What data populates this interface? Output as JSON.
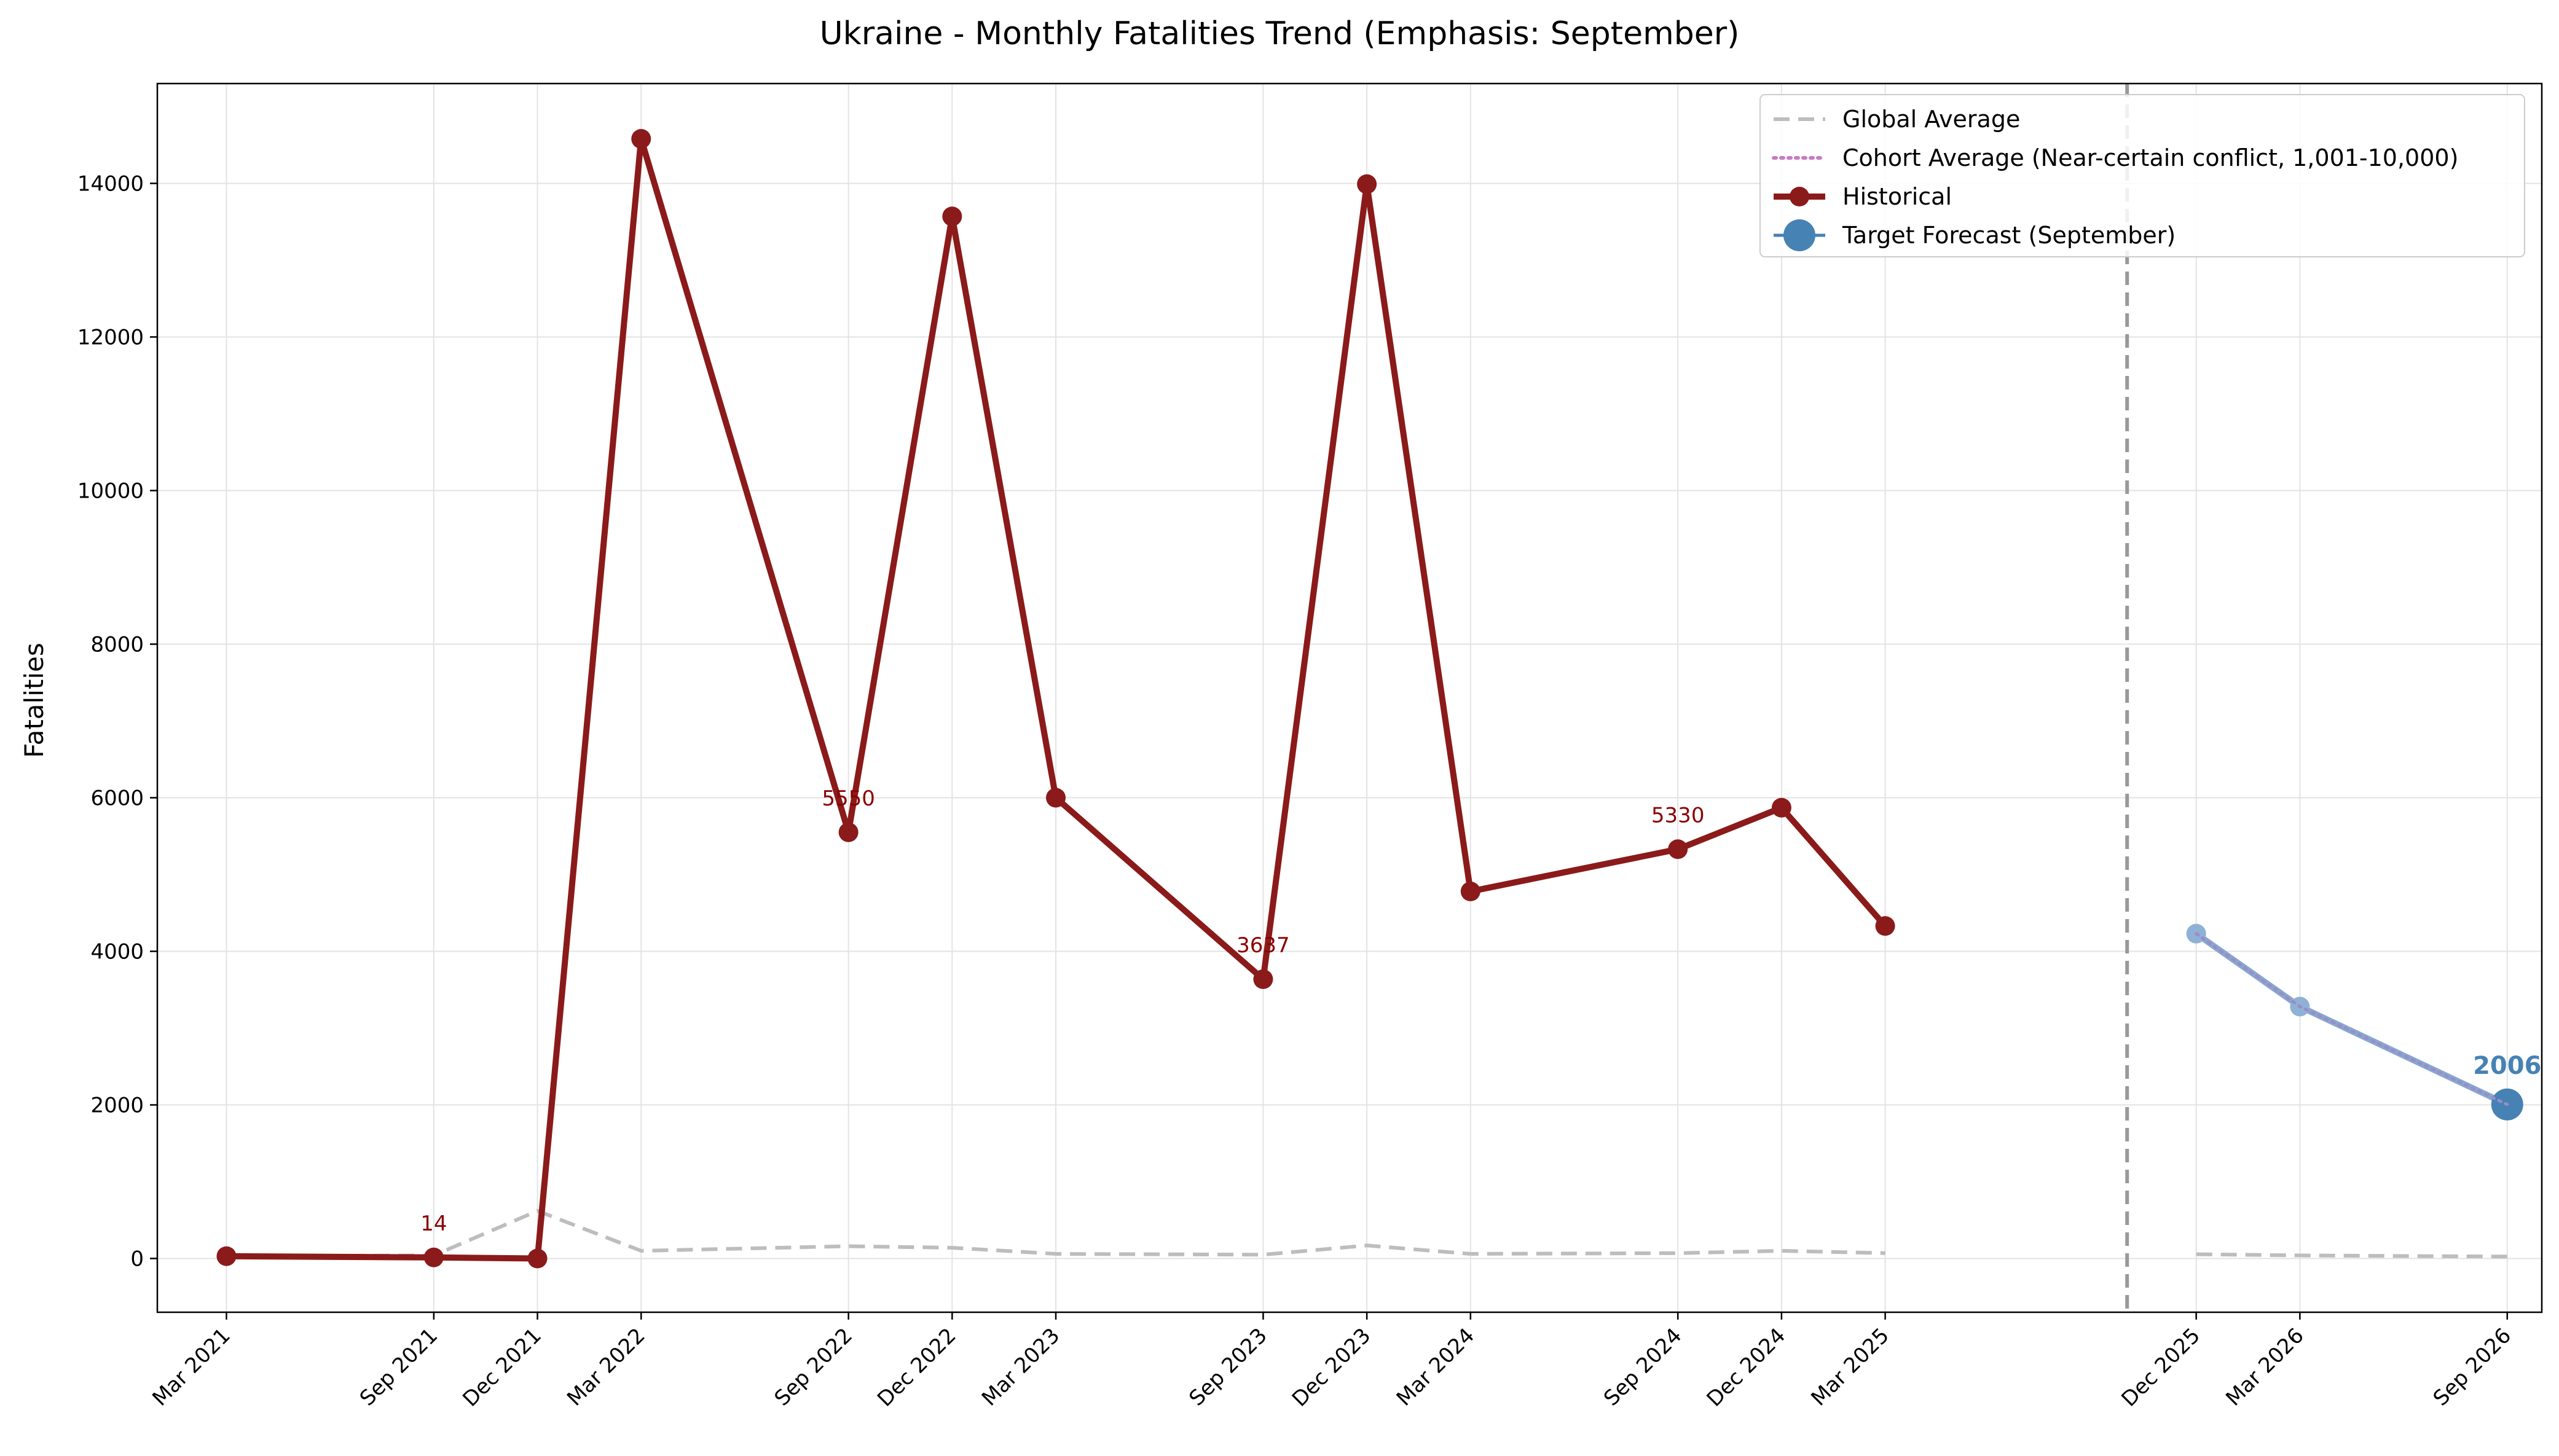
{
  "chart_data": {
    "type": "line",
    "title": "Ukraine - Monthly Fatalities Trend (Emphasis: September)",
    "xlabel": "",
    "ylabel": "Fatalities",
    "ylim": [
      -700,
      15300
    ],
    "yticks": [
      0,
      2000,
      4000,
      6000,
      8000,
      10000,
      12000,
      14000
    ],
    "xticks": [
      "Mar 2021",
      "Sep 2021",
      "Dec 2021",
      "Mar 2022",
      "Sep 2022",
      "Dec 2022",
      "Mar 2023",
      "Sep 2023",
      "Dec 2023",
      "Mar 2024",
      "Sep 2024",
      "Dec 2024",
      "Mar 2025",
      "Dec 2025",
      "Mar 2026",
      "Sep 2026"
    ],
    "grid": true,
    "legend_position": "top-right",
    "forecast_divider": "Oct 2025",
    "series": [
      {
        "name": "Global Average",
        "style": "dashed",
        "color": "#bdbdbd",
        "segments": [
          [
            {
              "x": "Mar 2021",
              "y": 30
            },
            {
              "x": "Sep 2021",
              "y": 40
            },
            {
              "x": "Dec 2021",
              "y": 620
            },
            {
              "x": "Mar 2022",
              "y": 100
            },
            {
              "x": "Sep 2022",
              "y": 160
            },
            {
              "x": "Dec 2022",
              "y": 140
            },
            {
              "x": "Mar 2023",
              "y": 60
            },
            {
              "x": "Sep 2023",
              "y": 50
            },
            {
              "x": "Dec 2023",
              "y": 170
            },
            {
              "x": "Mar 2024",
              "y": 60
            },
            {
              "x": "Sep 2024",
              "y": 70
            },
            {
              "x": "Dec 2024",
              "y": 100
            },
            {
              "x": "Mar 2025",
              "y": 70
            }
          ],
          [
            {
              "x": "Dec 2025",
              "y": 55
            },
            {
              "x": "Mar 2026",
              "y": 40
            },
            {
              "x": "Sep 2026",
              "y": 25
            }
          ]
        ]
      },
      {
        "name": "Cohort Average (Near-certain conflict, 1,001-10,000)",
        "style": "dotted",
        "color": "#c77cc7",
        "segments": [
          [
            {
              "x": "Dec 2025",
              "y": 4230
            },
            {
              "x": "Mar 2026",
              "y": 3280
            },
            {
              "x": "Sep 2026",
              "y": 2006
            }
          ]
        ]
      },
      {
        "name": "Historical",
        "style": "solid",
        "color": "#8b1a1a",
        "points": [
          {
            "x": "Mar 2021",
            "y": 30
          },
          {
            "x": "Sep 2021",
            "y": 14
          },
          {
            "x": "Dec 2021",
            "y": 0
          },
          {
            "x": "Mar 2022",
            "y": 14580
          },
          {
            "x": "Sep 2022",
            "y": 5550
          },
          {
            "x": "Dec 2022",
            "y": 13570
          },
          {
            "x": "Mar 2023",
            "y": 6000
          },
          {
            "x": "Sep 2023",
            "y": 3637
          },
          {
            "x": "Dec 2023",
            "y": 13990
          },
          {
            "x": "Mar 2024",
            "y": 4780
          },
          {
            "x": "Sep 2024",
            "y": 5330
          },
          {
            "x": "Dec 2024",
            "y": 5870
          },
          {
            "x": "Mar 2025",
            "y": 4330
          }
        ],
        "labels": [
          {
            "x": "Sep 2021",
            "y": 14,
            "text": "14"
          },
          {
            "x": "Sep 2022",
            "y": 5550,
            "text": "5550"
          },
          {
            "x": "Sep 2023",
            "y": 3637,
            "text": "3637"
          },
          {
            "x": "Sep 2024",
            "y": 5330,
            "text": "5330"
          }
        ]
      },
      {
        "name": "Target Forecast (September)",
        "style": "solid",
        "color": "#4682b4",
        "points": [
          {
            "x": "Dec 2025",
            "y": 4230
          },
          {
            "x": "Mar 2026",
            "y": 3280
          },
          {
            "x": "Sep 2026",
            "y": 2006
          }
        ],
        "labels": [
          {
            "x": "Sep 2026",
            "y": 2006,
            "text": "2006"
          }
        ]
      }
    ]
  }
}
